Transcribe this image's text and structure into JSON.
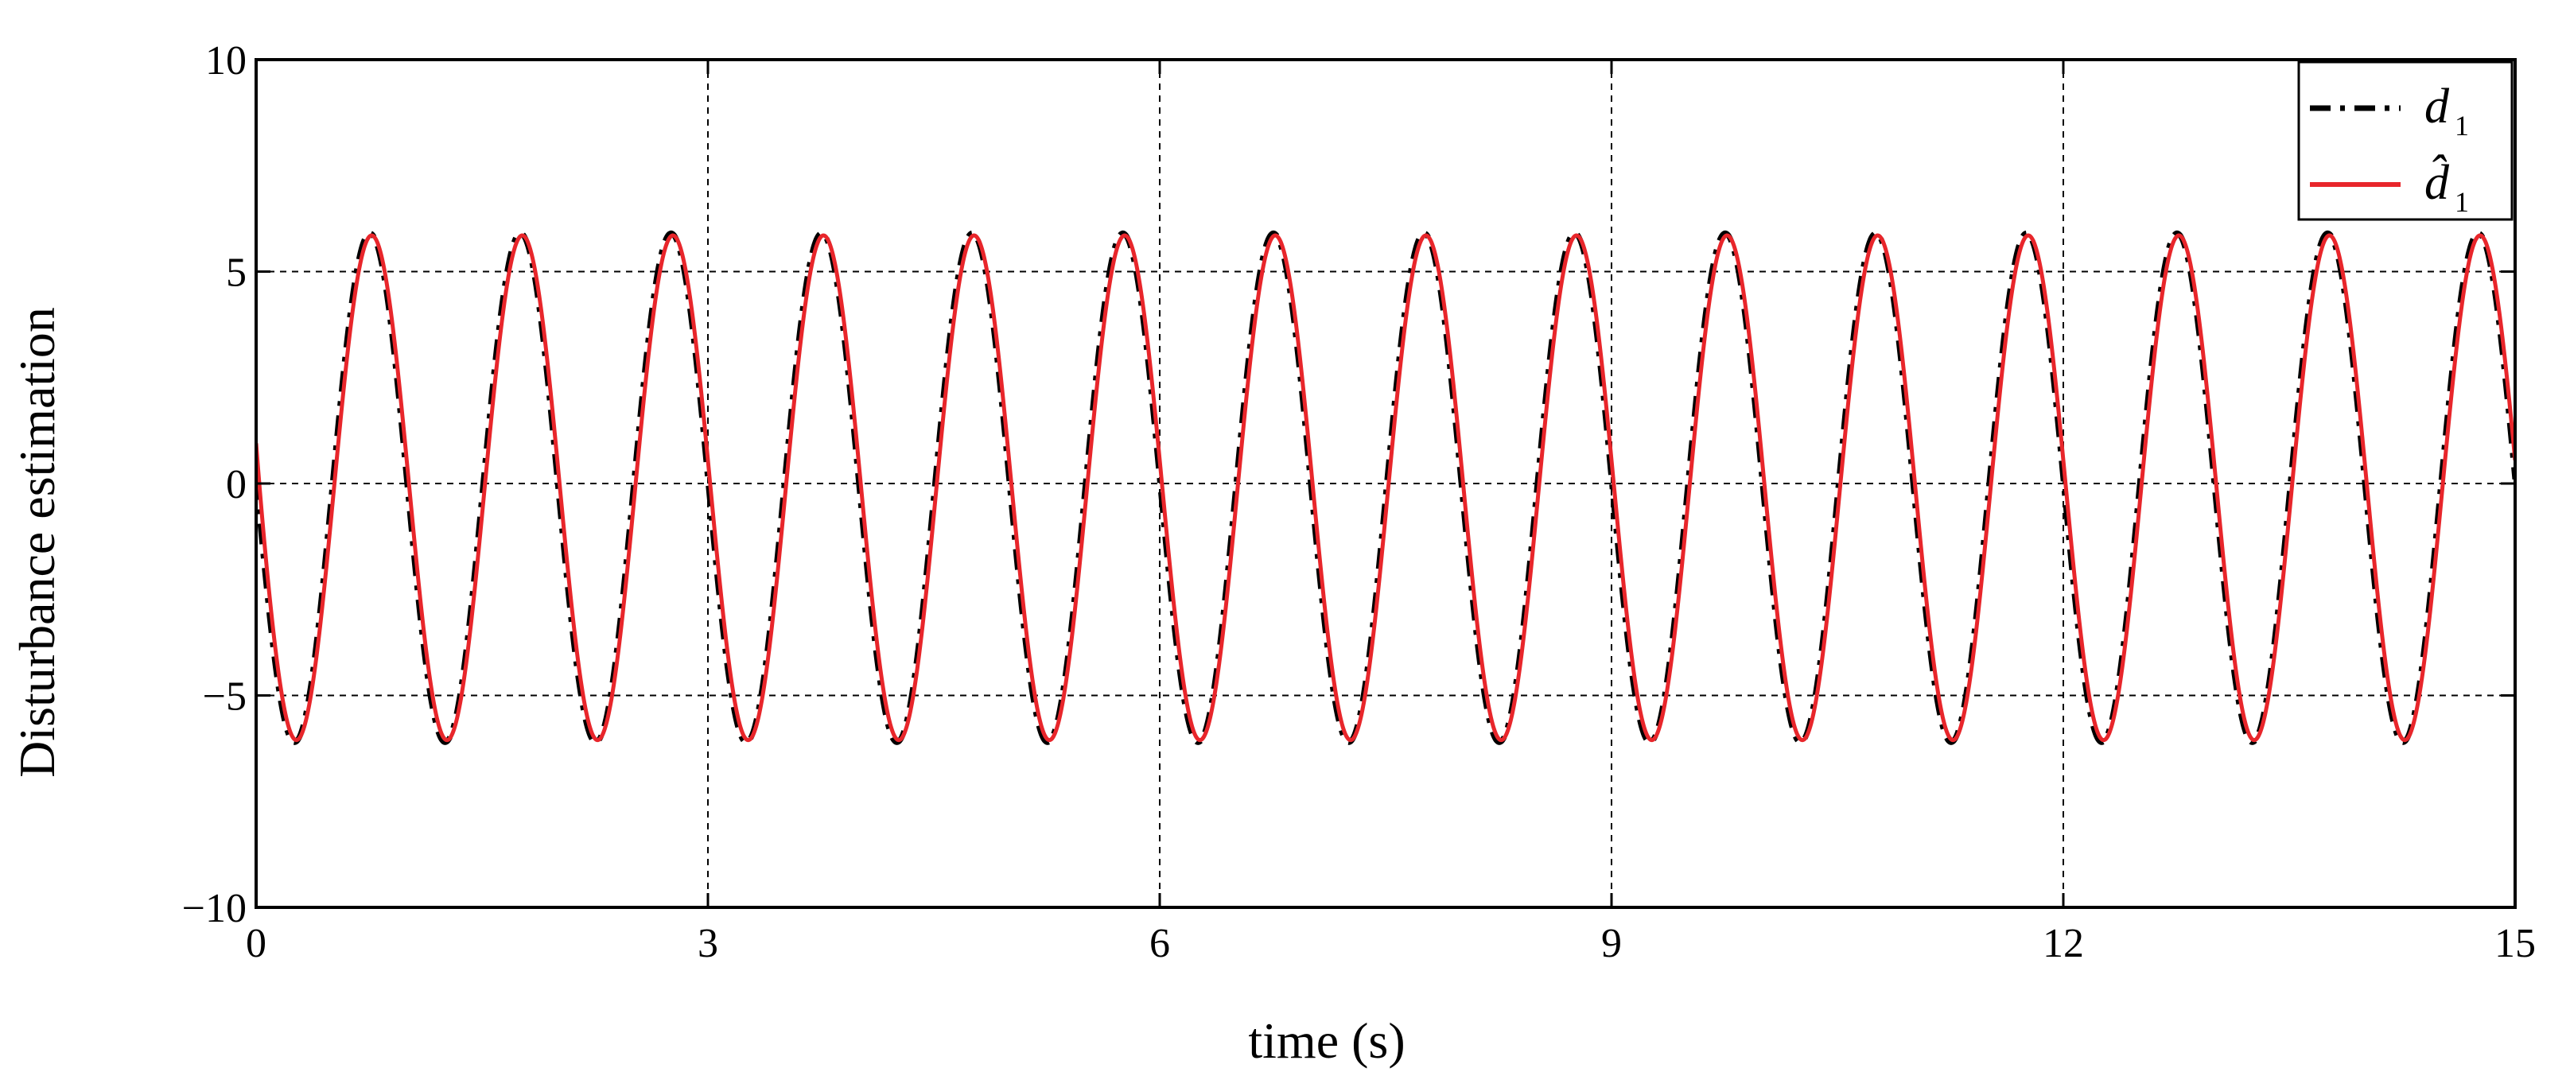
{
  "chart_data": {
    "type": "line",
    "title": "",
    "xlabel": "time (s)",
    "ylabel": "Disturbance estimation",
    "xlim": [
      0,
      15
    ],
    "ylim": [
      -10,
      10
    ],
    "xticks": [
      0,
      3,
      6,
      9,
      12,
      15
    ],
    "xtick_labels": [
      "0",
      "3",
      "6",
      "9",
      "12",
      "15"
    ],
    "yticks": [
      -10,
      -5,
      0,
      5,
      10
    ],
    "ytick_labels": [
      "−10",
      "−5",
      "0",
      "5",
      "10"
    ],
    "grid": true,
    "legend": {
      "placement": "top-right",
      "entries": [
        {
          "symbol": "d",
          "subscript": "1",
          "style": "dash-dot",
          "color": "#000000"
        },
        {
          "symbol": "d̂",
          "subscript": "1",
          "style": "solid",
          "color": "#e8262b"
        }
      ]
    },
    "series": [
      {
        "legend_index": 0,
        "function": "-6*sin(2*pi*t) + 0.2*cos(2*pi*t) (approx.)",
        "amplitude": 6.0,
        "frequency_hz": 1.0,
        "x_range": [
          0,
          15
        ],
        "color": "#000000",
        "style": "dash-dot",
        "values_at_x": {
          "x": [
            0,
            0.3,
            0.8,
            1.3,
            1.8,
            2.3,
            2.8
          ],
          "y": [
            0,
            -6.1,
            5.9,
            -6.1,
            5.9,
            -6.1,
            5.9
          ]
        }
      },
      {
        "legend_index": 1,
        "function": "estimate tracking d1 with slight phase lag",
        "amplitude": 6.0,
        "frequency_hz": 1.0,
        "x_range": [
          0,
          15
        ],
        "color": "#e8262b",
        "style": "solid",
        "values_at_x": {
          "x": [
            0,
            0.3,
            0.8,
            1.3,
            1.8,
            2.3,
            2.8
          ],
          "y": [
            0.3,
            -6.0,
            5.9,
            -6.0,
            5.9,
            -6.0,
            5.9
          ]
        }
      }
    ]
  }
}
